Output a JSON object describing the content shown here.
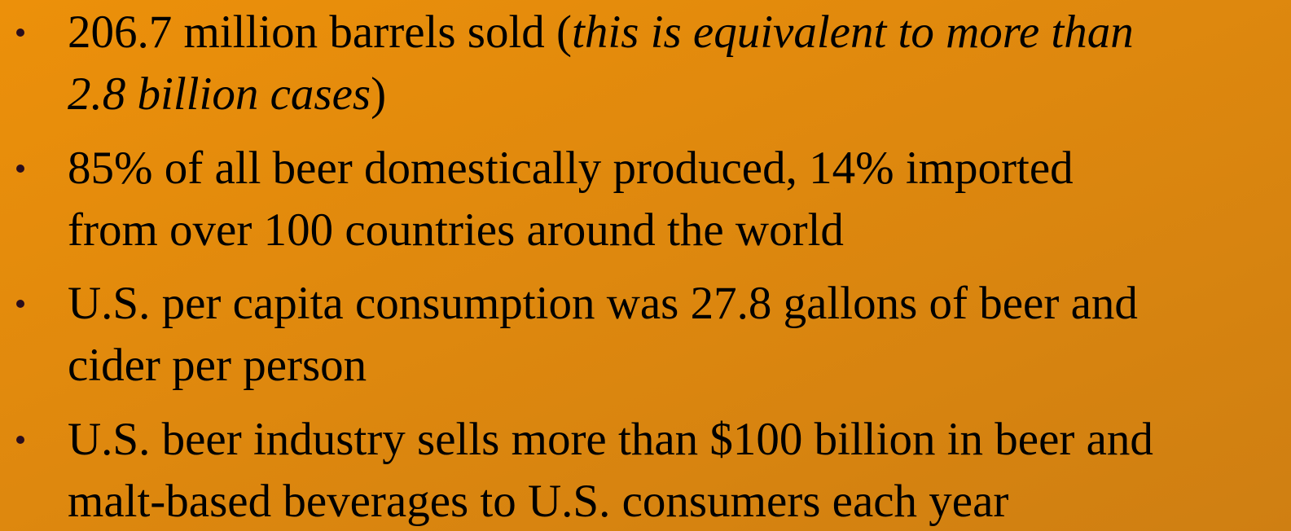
{
  "bullets": [
    {
      "lines": [
        [
          {
            "text": "206.7 million barrels sold ("
          },
          {
            "text": "this is equivalent to more than",
            "italic": true
          }
        ],
        [
          {
            "text": "2.8 billion cases",
            "italic": true
          },
          {
            "text": ")"
          }
        ]
      ]
    },
    {
      "lines": [
        [
          {
            "text": "85% of all beer domestically produced, 14% imported"
          }
        ],
        [
          {
            "text": "from over 100 countries around the world"
          }
        ]
      ]
    },
    {
      "lines": [
        [
          {
            "text": "U.S. per capita consumption was 27.8 gallons of beer and"
          }
        ],
        [
          {
            "text": "cider per person"
          }
        ]
      ]
    },
    {
      "lines": [
        [
          {
            "text": "U.S. beer industry sells more than $100 billion in beer and"
          }
        ],
        [
          {
            "text": "malt-based beverages to U.S. consumers each year"
          }
        ]
      ]
    }
  ]
}
